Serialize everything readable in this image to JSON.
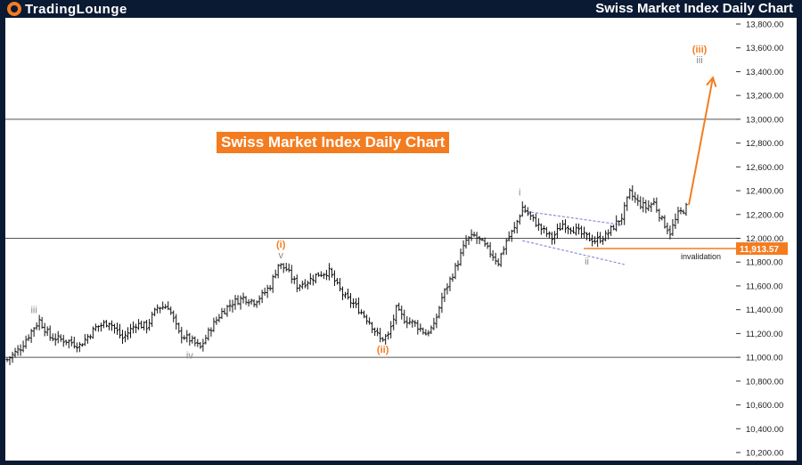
{
  "header": {
    "logo_part1": "TradingLounge",
    "title": "Swiss Market Index Daily Chart"
  },
  "colors": {
    "brand_navy": "#0b1a33",
    "accent_orange": "#f47c20",
    "wave_gray": "#8a8a8a",
    "channel_blue": "#8a8fd6"
  },
  "chart_data": {
    "type": "ohlc",
    "title": "Swiss Market Index Daily Chart",
    "ylim": [
      10200,
      13800
    ],
    "y_ticks": [
      "13,800.00",
      "13,600.00",
      "13,400.00",
      "13,200.00",
      "13,000.00",
      "12,800.00",
      "12,600.00",
      "12,400.00",
      "12,200.00",
      "12,000.00",
      "11,800.00",
      "11,600.00",
      "11,400.00",
      "11,200.00",
      "11,000.00",
      "10,800.00",
      "10,600.00",
      "10,400.00",
      "10,200.00"
    ],
    "horizontal_levels": [
      13000,
      12000,
      11000
    ],
    "invalidation": {
      "value": 11913.57,
      "label": "11,913.57",
      "text": "invalidation"
    },
    "close_path": [
      {
        "i": 0,
        "v": 10980
      },
      {
        "i": 5,
        "v": 11080
      },
      {
        "i": 9,
        "v": 11220
      },
      {
        "i": 12,
        "v": 11310
      },
      {
        "i": 16,
        "v": 11170
      },
      {
        "i": 22,
        "v": 11140
      },
      {
        "i": 27,
        "v": 11100
      },
      {
        "i": 33,
        "v": 11250
      },
      {
        "i": 38,
        "v": 11300
      },
      {
        "i": 43,
        "v": 11160
      },
      {
        "i": 48,
        "v": 11280
      },
      {
        "i": 52,
        "v": 11260
      },
      {
        "i": 56,
        "v": 11420
      },
      {
        "i": 60,
        "v": 11430
      },
      {
        "i": 64,
        "v": 11200
      },
      {
        "i": 68,
        "v": 11150
      },
      {
        "i": 72,
        "v": 11080
      },
      {
        "i": 76,
        "v": 11250
      },
      {
        "i": 80,
        "v": 11380
      },
      {
        "i": 84,
        "v": 11460
      },
      {
        "i": 88,
        "v": 11500
      },
      {
        "i": 92,
        "v": 11470
      },
      {
        "i": 95,
        "v": 11520
      },
      {
        "i": 98,
        "v": 11600
      },
      {
        "i": 101,
        "v": 11780
      },
      {
        "i": 104,
        "v": 11740
      },
      {
        "i": 108,
        "v": 11600
      },
      {
        "i": 112,
        "v": 11640
      },
      {
        "i": 116,
        "v": 11700
      },
      {
        "i": 120,
        "v": 11720
      },
      {
        "i": 123,
        "v": 11600
      },
      {
        "i": 126,
        "v": 11500
      },
      {
        "i": 129,
        "v": 11450
      },
      {
        "i": 132,
        "v": 11380
      },
      {
        "i": 135,
        "v": 11300
      },
      {
        "i": 139,
        "v": 11150
      },
      {
        "i": 142,
        "v": 11180
      },
      {
        "i": 145,
        "v": 11400
      },
      {
        "i": 148,
        "v": 11320
      },
      {
        "i": 152,
        "v": 11280
      },
      {
        "i": 156,
        "v": 11200
      },
      {
        "i": 159,
        "v": 11260
      },
      {
        "i": 162,
        "v": 11500
      },
      {
        "i": 165,
        "v": 11650
      },
      {
        "i": 168,
        "v": 11800
      },
      {
        "i": 171,
        "v": 11980
      },
      {
        "i": 174,
        "v": 12020
      },
      {
        "i": 177,
        "v": 11960
      },
      {
        "i": 180,
        "v": 11880
      },
      {
        "i": 183,
        "v": 11800
      },
      {
        "i": 186,
        "v": 11980
      },
      {
        "i": 189,
        "v": 12080
      },
      {
        "i": 192,
        "v": 12260
      },
      {
        "i": 195,
        "v": 12180
      },
      {
        "i": 199,
        "v": 12080
      },
      {
        "i": 203,
        "v": 12000
      },
      {
        "i": 207,
        "v": 12120
      },
      {
        "i": 211,
        "v": 12080
      },
      {
        "i": 215,
        "v": 12020
      },
      {
        "i": 219,
        "v": 11980
      },
      {
        "i": 223,
        "v": 12020
      },
      {
        "i": 226,
        "v": 12100
      },
      {
        "i": 229,
        "v": 12180
      },
      {
        "i": 232,
        "v": 12380
      },
      {
        "i": 235,
        "v": 12300
      },
      {
        "i": 238,
        "v": 12260
      },
      {
        "i": 241,
        "v": 12300
      },
      {
        "i": 244,
        "v": 12150
      },
      {
        "i": 247,
        "v": 12050
      },
      {
        "i": 250,
        "v": 12200
      },
      {
        "i": 253,
        "v": 12260
      }
    ],
    "bar_count": 254,
    "projection": {
      "from": 12280,
      "to": 13350
    },
    "channel": {
      "upper": [
        [
          192,
          12230
        ],
        [
          230,
          12110
        ]
      ],
      "lower": [
        [
          192,
          11980
        ],
        [
          230,
          11780
        ]
      ]
    },
    "wave_labels": [
      {
        "text": "iii",
        "bar": 10,
        "value": 11370,
        "color": "#8a8a8a"
      },
      {
        "text": "iv",
        "bar": 68,
        "value": 10990,
        "color": "#8a8a8a"
      },
      {
        "text": "(i)",
        "bar": 102,
        "value": 11920,
        "color": "#f47c20"
      },
      {
        "text": "v",
        "bar": 102,
        "value": 11830,
        "color": "#8a8a8a"
      },
      {
        "text": "(ii)",
        "bar": 140,
        "value": 11040,
        "color": "#f47c20"
      },
      {
        "text": "i",
        "bar": 191,
        "value": 12360,
        "color": "#8a8a8a"
      },
      {
        "text": "ii",
        "bar": 216,
        "value": 11780,
        "color": "#8a8a8a"
      },
      {
        "text": "(iii)",
        "bar": 258,
        "value": 13560,
        "color": "#f47c20"
      },
      {
        "text": "iii",
        "bar": 258,
        "value": 13470,
        "color": "#8a8a8a"
      }
    ]
  }
}
